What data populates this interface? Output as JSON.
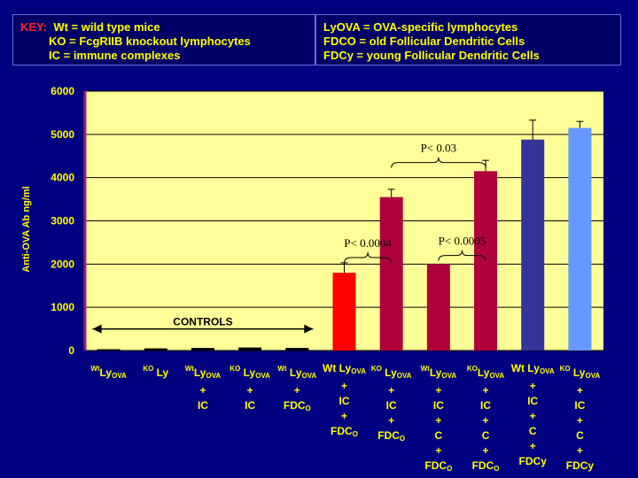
{
  "key": {
    "heading": "KEY:",
    "left": [
      "Wt = wild type mice",
      "KO = FcgRIIB knockout lymphocytes",
      "IC = immune complexes"
    ],
    "right": [
      "LyOVA = OVA-specific lymphocytes",
      "FDCO = old Follicular Dendritic Cells",
      "FDCy = young Follicular Dendritic Cells"
    ]
  },
  "colors": {
    "background": "#000080",
    "plot_area": "#ffff99",
    "controls": "#000000",
    "red": "#ff0000",
    "crimson": "#b0003c",
    "navy_bar": "#333399",
    "light_blue": "#6699ff",
    "text": "#ffff00"
  },
  "chart_data": {
    "type": "bar",
    "ylabel": "Anti-OVA Ab ng/ml",
    "ylim": [
      0,
      6000
    ],
    "yticks": [
      0,
      1000,
      2000,
      3000,
      4000,
      5000,
      6000
    ],
    "grid": true,
    "categories": [
      "WtLyOVA",
      "KO Ly",
      "WtLyOVA + IC",
      "KO LyOVA + IC",
      "Wt LyOVA + FDCO",
      "Wt LyOVA + IC + FDCO",
      "KO LyOVA + IC + FDCO",
      "Wt LyOVA + IC + C + FDCO",
      "KO LyOVA + IC + C + FDCO",
      "Wt LyOVA + IC + C + FDCy",
      "KO LyOVA + IC + C + FDCy"
    ],
    "category_lines": [
      [
        {
          "sup": "Wt",
          "main": "Ly",
          "sub": "OVA"
        }
      ],
      [
        {
          "sup": "KO",
          "main": " Ly"
        }
      ],
      [
        {
          "sup": "Wt",
          "main": "Ly",
          "sub": "OVA"
        },
        {
          "main": "+"
        },
        {
          "main": "IC"
        }
      ],
      [
        {
          "sup": "KO",
          "main": " Ly",
          "sub": "OVA"
        },
        {
          "main": "+"
        },
        {
          "main": "IC"
        }
      ],
      [
        {
          "sup": "Wt",
          "main": " Ly",
          "sub": "OVA"
        },
        {
          "main": "+"
        },
        {
          "main": "FDC",
          "sub": "O"
        }
      ],
      [
        {
          "main": "Wt Ly",
          "sub": "OVA"
        },
        {
          "main": "+"
        },
        {
          "main": "IC"
        },
        {
          "main": "+"
        },
        {
          "main": "FDC",
          "sub": "O"
        }
      ],
      [
        {
          "sup": "KO",
          "main": " Ly",
          "sub": "OVA"
        },
        {
          "main": "+"
        },
        {
          "main": "IC"
        },
        {
          "main": "+"
        },
        {
          "main": "FDC",
          "sub": "O"
        }
      ],
      [
        {
          "sup": "Wt",
          "main": "Ly",
          "sub": "OVA"
        },
        {
          "main": "+"
        },
        {
          "main": "IC"
        },
        {
          "main": "+"
        },
        {
          "main": "C"
        },
        {
          "main": "+"
        },
        {
          "main": "FDC",
          "sub": "O"
        }
      ],
      [
        {
          "sup": "KO",
          "main": "Ly",
          "sub": "OVA"
        },
        {
          "main": "+"
        },
        {
          "main": "IC"
        },
        {
          "main": "+"
        },
        {
          "main": "C"
        },
        {
          "main": "+"
        },
        {
          "main": "FDC",
          "sub": "O"
        }
      ],
      [
        {
          "main": "Wt Ly",
          "sub": "OVA"
        },
        {
          "main": "+"
        },
        {
          "main": "IC"
        },
        {
          "main": "+"
        },
        {
          "main": "C"
        },
        {
          "main": "+"
        },
        {
          "main": "FDCy"
        }
      ],
      [
        {
          "sup": "KO",
          "main": " Ly",
          "sub": "OVA"
        },
        {
          "main": "+"
        },
        {
          "main": "IC"
        },
        {
          "main": "+"
        },
        {
          "main": "C"
        },
        {
          "main": "+"
        },
        {
          "main": "FDCy"
        }
      ]
    ],
    "values": [
      30,
      50,
      60,
      70,
      60,
      1800,
      3550,
      2000,
      4150,
      4880,
      5150
    ],
    "errors": [
      0,
      0,
      0,
      0,
      0,
      230,
      180,
      0,
      250,
      450,
      150
    ],
    "bar_colors": [
      "controls",
      "controls",
      "controls",
      "controls",
      "controls",
      "red",
      "crimson",
      "crimson",
      "crimson",
      "navy_bar",
      "light_blue"
    ],
    "annotations": [
      {
        "text": "CONTROLS",
        "type": "range_arrow",
        "from_index": 0,
        "to_index": 4,
        "y": 500
      },
      {
        "text": "P< 0.0004",
        "type": "bracket",
        "from_index": 5,
        "to_index": 6,
        "y": 2150
      },
      {
        "text": "P< 0.0005",
        "type": "bracket",
        "from_index": 7,
        "to_index": 8,
        "y": 2200
      },
      {
        "text": "P< 0.03",
        "type": "bracket",
        "from_index": 6,
        "to_index": 8,
        "y": 4350
      }
    ]
  }
}
